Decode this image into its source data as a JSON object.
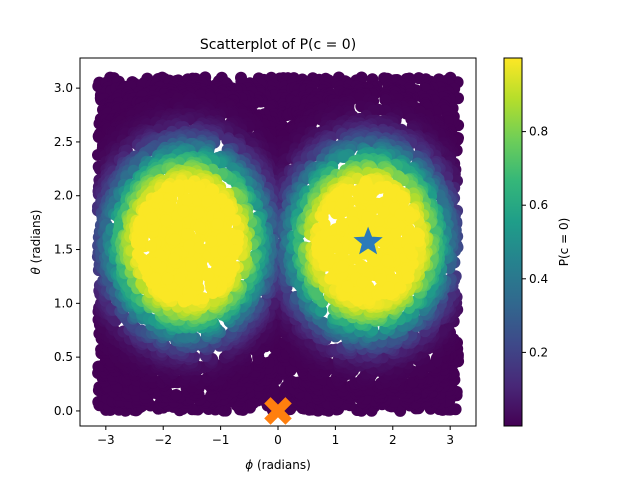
{
  "chart_data": {
    "type": "scatter",
    "title": "Scatterplot of P(c = 0)",
    "xlabel_symbol": "ϕ",
    "xlabel_rest": " (radians)",
    "ylabel_symbol": "θ",
    "ylabel_rest": " (radians)",
    "xlim": [
      -3.45,
      3.45
    ],
    "ylim": [
      -0.14,
      3.28
    ],
    "xticks": [
      -3,
      -2,
      -1,
      0,
      1,
      2,
      3
    ],
    "xtick_labels": [
      "−3",
      "−2",
      "−1",
      "0",
      "1",
      "2",
      "3"
    ],
    "yticks": [
      0.0,
      0.5,
      1.0,
      1.5,
      2.0,
      2.5,
      3.0
    ],
    "ytick_labels": [
      "0.0",
      "0.5",
      "1.0",
      "1.5",
      "2.0",
      "2.5",
      "3.0"
    ],
    "grid": false,
    "colorbar": {
      "label": "P(c = 0)",
      "range": [
        0.0,
        1.0
      ],
      "ticks": [
        0.2,
        0.4,
        0.6,
        0.8
      ],
      "tick_labels": [
        "0.2",
        "0.4",
        "0.6",
        "0.8"
      ],
      "colormap": "viridis"
    },
    "distribution": {
      "phi_range": [
        -3.14,
        3.14
      ],
      "theta_range": [
        0.0,
        3.1
      ],
      "high_regions": [
        {
          "center_phi": -1.57,
          "center_theta": 1.57
        },
        {
          "center_phi": 1.57,
          "center_theta": 1.57
        }
      ]
    },
    "markers": [
      {
        "name": "star",
        "phi": 1.57,
        "theta": 1.57,
        "color": "#2b7bba"
      },
      {
        "name": "cross",
        "phi": 0.0,
        "theta": 0.0,
        "color": "#ff7f0e"
      }
    ],
    "viridis_stops": [
      "#440154",
      "#482878",
      "#3e4989",
      "#31688e",
      "#26828e",
      "#1f9e89",
      "#35b779",
      "#6ece58",
      "#b5de2b",
      "#fde725"
    ]
  }
}
